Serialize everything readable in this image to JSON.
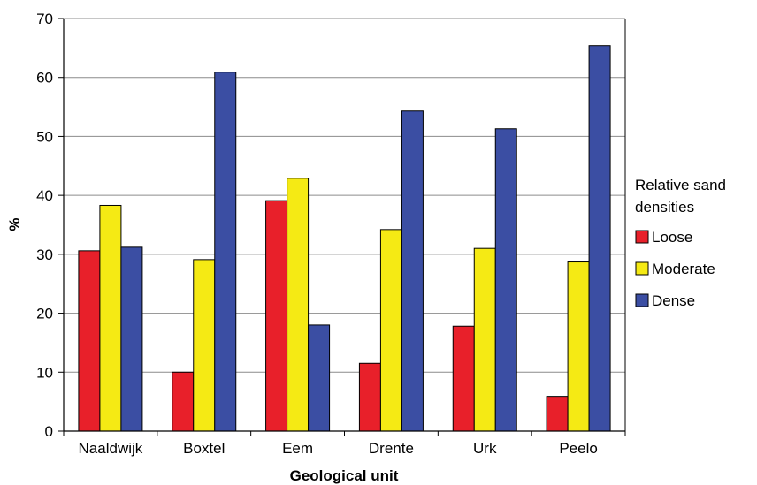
{
  "chart_data": {
    "type": "bar",
    "xlabel": "Geological unit",
    "ylabel": "%",
    "ylim": [
      0,
      70
    ],
    "yticks": [
      0,
      10,
      20,
      30,
      40,
      50,
      60,
      70
    ],
    "grid": true,
    "categories": [
      "Naaldwijk",
      "Boxtel",
      "Eem",
      "Drente",
      "Urk",
      "Peelo"
    ],
    "legend": {
      "title_lines": [
        "Relative sand",
        "densities"
      ],
      "placement": "right"
    },
    "series": [
      {
        "name": "Loose",
        "color": "#e8202a",
        "values": [
          30.6,
          10.0,
          39.1,
          11.5,
          17.8,
          5.9
        ]
      },
      {
        "name": "Moderate",
        "color": "#f5ea14",
        "values": [
          38.3,
          29.1,
          42.9,
          34.2,
          31.0,
          28.7
        ]
      },
      {
        "name": "Dense",
        "color": "#3b4ea3",
        "values": [
          31.2,
          60.9,
          18.0,
          54.3,
          51.3,
          65.4
        ]
      }
    ]
  }
}
